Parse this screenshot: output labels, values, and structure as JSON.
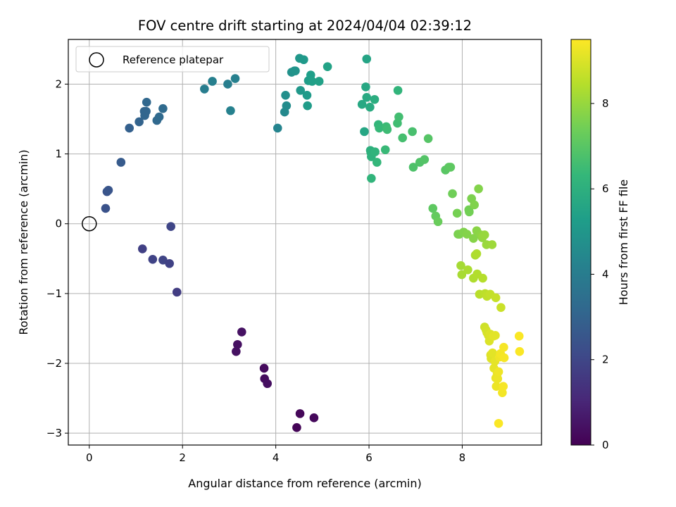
{
  "chart_data": {
    "type": "scatter",
    "title": "FOV centre drift starting at 2024/04/04 02:39:12",
    "xlabel": "Angular distance from reference (arcmin)",
    "ylabel": "Rotation from reference (arcmin)",
    "xlim": [
      -0.45,
      9.7
    ],
    "ylim": [
      -3.17,
      2.64
    ],
    "xticks": [
      0,
      2,
      4,
      6,
      8
    ],
    "yticks": [
      -3,
      -2,
      -1,
      0,
      1,
      2
    ],
    "xtick_labels": [
      "0",
      "2",
      "4",
      "6",
      "8"
    ],
    "ytick_labels": [
      "−3",
      "−2",
      "−1",
      "0",
      "1",
      "2"
    ],
    "grid": true,
    "legend": {
      "placement": "top-left",
      "entries": [
        {
          "label": "Reference platepar",
          "marker": "open-circle"
        }
      ]
    },
    "reference_point": {
      "x": 0,
      "y": 0
    },
    "colorbar": {
      "label": "Hours from first FF file",
      "colormap": "viridis",
      "range": [
        0,
        9.5
      ],
      "ticks": [
        0,
        2,
        4,
        6,
        8
      ],
      "tick_labels": [
        "0",
        "2",
        "4",
        "6",
        "8"
      ]
    },
    "colormap_stops": [
      "#440154",
      "#482878",
      "#3e4a89",
      "#31688e",
      "#26828e",
      "#1f9e89",
      "#35b779",
      "#6ece58",
      "#b5de2b",
      "#fde725"
    ],
    "x": [
      4.45,
      4.52,
      4.82,
      3.18,
      3.27,
      3.15,
      3.75,
      3.76,
      3.82,
      1.14,
      1.36,
      1.58,
      1.72,
      1.75,
      1.88,
      0.35,
      0.38,
      0.41,
      0.68,
      0.86,
      1.07,
      1.18,
      1.19,
      1.23,
      1.22,
      1.45,
      1.5,
      1.58,
      2.47,
      2.64,
      2.97,
      3.03,
      3.13,
      4.04,
      4.19,
      4.21,
      4.23,
      4.34,
      4.4,
      4.42,
      4.51,
      4.53,
      4.6,
      4.67,
      4.68,
      4.7,
      4.75,
      4.78,
      4.93,
      5.11,
      5.85,
      5.9,
      5.93,
      5.95,
      5.95,
      6.02,
      6.03,
      6.04,
      6.05,
      6.05,
      6.13,
      6.12,
      6.17,
      6.2,
      6.22,
      6.35,
      6.37,
      6.39,
      6.61,
      6.62,
      6.64,
      6.72,
      6.93,
      6.95,
      7.09,
      7.19,
      7.27,
      7.37,
      7.43,
      7.48,
      7.64,
      7.71,
      7.75,
      7.79,
      7.89,
      7.91,
      7.94,
      8.03,
      8.1,
      8.14,
      8.15,
      8.2,
      8.24,
      8.26,
      8.31,
      8.35,
      8.4,
      8.43,
      8.44,
      8.48,
      8.52,
      8.64,
      7.97,
      7.99,
      8.12,
      8.24,
      8.28,
      8.31,
      8.32,
      8.37,
      8.44,
      8.49,
      8.53,
      8.6,
      8.72,
      8.83,
      8.48,
      8.51,
      8.53,
      8.56,
      8.58,
      8.6,
      8.61,
      8.62,
      8.65,
      8.67,
      8.68,
      8.7,
      8.71,
      8.72,
      8.73,
      8.75,
      8.76,
      8.78,
      8.8,
      8.82,
      8.86,
      8.88,
      8.89,
      8.9,
      9.22,
      9.23,
      8.78
    ],
    "y": [
      -2.92,
      -2.72,
      -2.78,
      -1.73,
      -1.55,
      -1.83,
      -2.07,
      -2.22,
      -2.29,
      -0.36,
      -0.51,
      -0.52,
      -0.57,
      -0.04,
      -0.98,
      0.22,
      0.46,
      0.48,
      0.88,
      1.37,
      1.46,
      1.61,
      1.55,
      1.74,
      1.61,
      1.48,
      1.53,
      1.65,
      1.93,
      2.04,
      2.0,
      1.62,
      2.08,
      1.37,
      1.6,
      1.84,
      1.69,
      2.17,
      2.19,
      2.19,
      2.37,
      1.91,
      2.35,
      1.84,
      1.69,
      2.05,
      2.13,
      2.04,
      2.04,
      2.25,
      1.71,
      1.32,
      1.96,
      1.81,
      2.36,
      1.67,
      1.05,
      1.02,
      0.96,
      0.65,
      1.03,
      1.78,
      0.88,
      1.42,
      1.37,
      1.06,
      1.39,
      1.35,
      1.44,
      1.91,
      1.53,
      1.23,
      1.32,
      0.81,
      0.88,
      0.92,
      1.22,
      0.22,
      0.11,
      0.03,
      0.77,
      0.81,
      0.81,
      0.43,
      0.15,
      -0.15,
      -0.15,
      -0.12,
      -0.15,
      0.2,
      0.17,
      0.36,
      -0.21,
      0.27,
      -0.1,
      0.5,
      -0.16,
      -0.2,
      -0.18,
      -0.16,
      -0.3,
      -0.3,
      -0.6,
      -0.73,
      -0.66,
      -0.78,
      -0.45,
      -0.43,
      -0.72,
      -1.01,
      -0.78,
      -1.0,
      -1.04,
      -1.01,
      -1.06,
      -1.2,
      -1.48,
      -1.52,
      -1.56,
      -1.6,
      -1.68,
      -1.58,
      -1.88,
      -1.93,
      -1.85,
      -1.61,
      -2.07,
      -1.97,
      -1.6,
      -2.21,
      -2.33,
      -2.15,
      -2.22,
      -2.12,
      -1.91,
      -1.86,
      -2.42,
      -2.33,
      -1.77,
      -1.92,
      -1.61,
      -1.83,
      -2.86
    ],
    "hours": [
      0.1,
      0.15,
      0.2,
      0.4,
      0.45,
      0.42,
      0.25,
      0.3,
      0.35,
      1.8,
      1.9,
      1.95,
      1.85,
      2.0,
      1.7,
      2.4,
      2.45,
      2.5,
      2.7,
      2.9,
      3.0,
      3.05,
      3.1,
      3.15,
      3.1,
      3.2,
      3.25,
      3.3,
      4.0,
      4.1,
      4.05,
      4.2,
      4.15,
      4.3,
      4.5,
      4.7,
      4.6,
      4.8,
      4.85,
      4.9,
      5.0,
      5.05,
      5.1,
      5.15,
      5.2,
      5.25,
      5.3,
      5.35,
      5.4,
      5.45,
      5.7,
      5.6,
      5.65,
      5.75,
      5.55,
      5.8,
      6.0,
      6.05,
      6.1,
      6.2,
      6.15,
      5.9,
      6.3,
      6.25,
      6.35,
      6.4,
      6.45,
      6.5,
      6.55,
      6.2,
      6.6,
      6.65,
      6.7,
      6.8,
      6.85,
      6.9,
      6.95,
      7.1,
      7.2,
      7.3,
      7.0,
      7.05,
      7.1,
      7.4,
      7.5,
      7.55,
      7.6,
      7.65,
      7.7,
      7.45,
      7.45,
      7.6,
      7.75,
      7.65,
      7.8,
      7.7,
      7.85,
      7.9,
      7.95,
      8.0,
      8.05,
      8.1,
      8.2,
      8.25,
      8.3,
      8.35,
      8.3,
      8.35,
      8.4,
      8.5,
      8.45,
      8.55,
      8.6,
      8.65,
      8.7,
      8.75,
      8.8,
      8.85,
      8.9,
      8.95,
      9.0,
      9.0,
      9.05,
      9.05,
      9.1,
      9.1,
      9.15,
      9.15,
      9.1,
      9.2,
      9.25,
      9.2,
      9.25,
      9.3,
      9.3,
      9.35,
      9.35,
      9.4,
      9.4,
      9.4,
      9.45,
      9.45,
      9.45
    ]
  }
}
